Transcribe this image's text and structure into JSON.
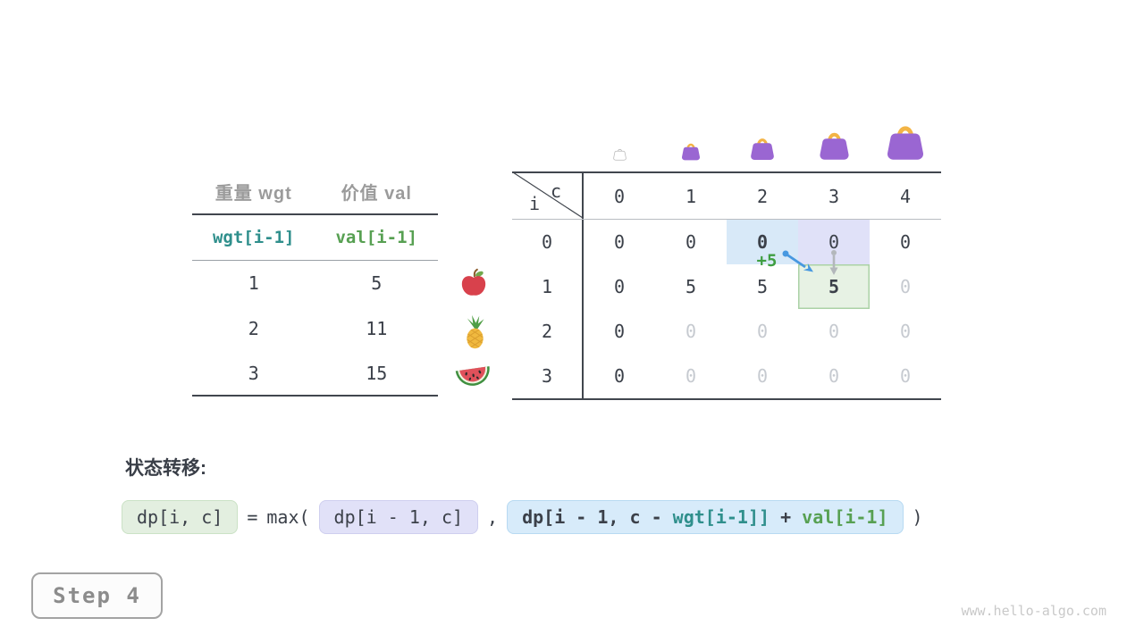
{
  "items_table": {
    "col_headers": [
      "重量 wgt",
      "价值 val"
    ],
    "index_row": {
      "wgt": "wgt[i-1]",
      "val": "val[i-1]"
    },
    "rows": [
      {
        "wgt": "1",
        "val": "5"
      },
      {
        "wgt": "2",
        "val": "11"
      },
      {
        "wgt": "3",
        "val": "15"
      }
    ]
  },
  "fruits": [
    {
      "icon": "apple-icon"
    },
    {
      "icon": "pineapple-icon"
    },
    {
      "icon": "watermelon-icon"
    }
  ],
  "dp_table": {
    "corner_col_label": "c",
    "corner_row_label": "i",
    "col_headers": [
      "0",
      "1",
      "2",
      "3",
      "4"
    ],
    "bags": [
      {
        "icon": "empty-bag-icon",
        "size": 15,
        "variant": "outline"
      },
      {
        "icon": "bag-icon",
        "size": 22,
        "variant": "filled"
      },
      {
        "icon": "bag-icon",
        "size": 28,
        "variant": "filled"
      },
      {
        "icon": "bag-icon",
        "size": 35,
        "variant": "filled"
      },
      {
        "icon": "bag-icon",
        "size": 44,
        "variant": "filled"
      }
    ],
    "rows": [
      {
        "label": "0",
        "cells": [
          {
            "v": "0"
          },
          {
            "v": "0"
          },
          {
            "v": "0",
            "style": "bold hl-blue"
          },
          {
            "v": "0",
            "style": "hl-lavender"
          },
          {
            "v": "0"
          }
        ]
      },
      {
        "label": "1",
        "cells": [
          {
            "v": "0"
          },
          {
            "v": "5"
          },
          {
            "v": "5"
          },
          {
            "v": "5",
            "style": "bold hl-green"
          },
          {
            "v": "0",
            "style": "dim"
          }
        ]
      },
      {
        "label": "2",
        "cells": [
          {
            "v": "0"
          },
          {
            "v": "0",
            "style": "dim"
          },
          {
            "v": "0",
            "style": "dim"
          },
          {
            "v": "0",
            "style": "dim"
          },
          {
            "v": "0",
            "style": "dim"
          }
        ]
      },
      {
        "label": "3",
        "cells": [
          {
            "v": "0"
          },
          {
            "v": "0",
            "style": "dim"
          },
          {
            "v": "0",
            "style": "dim"
          },
          {
            "v": "0",
            "style": "dim"
          },
          {
            "v": "0",
            "style": "dim"
          }
        ]
      }
    ],
    "annotation": "+5"
  },
  "formula": {
    "heading": "状态转移:",
    "lhs": "dp[i, c]",
    "equals": "=",
    "max_open": "max(",
    "arg1": "dp[i - 1, c]",
    "comma": ",",
    "arg2": {
      "pre": "dp[i - 1, c - ",
      "wgt": "wgt[i-1]]",
      "plus": " + ",
      "val": "val[i-1]"
    },
    "close": ")"
  },
  "step_button": {
    "label": "Step 4"
  },
  "watermark": "www.hello-algo.com",
  "colors": {
    "text_dark": "#3b4049",
    "text_dim": "#c6cad0",
    "header_gray": "#9b9b9b",
    "teal": "#2f8f8c",
    "green": "#57a052",
    "arrow_blue": "#4798e0",
    "arrow_gray": "#b3b7bb",
    "hl_blue": "#d8e9f8",
    "hl_lavender": "#e0e1f8",
    "hl_green_bg": "#e7f2e4",
    "hl_green_border": "#abd2a6",
    "bag_purple": "#9a66d2",
    "bag_handle": "#f3b445"
  }
}
